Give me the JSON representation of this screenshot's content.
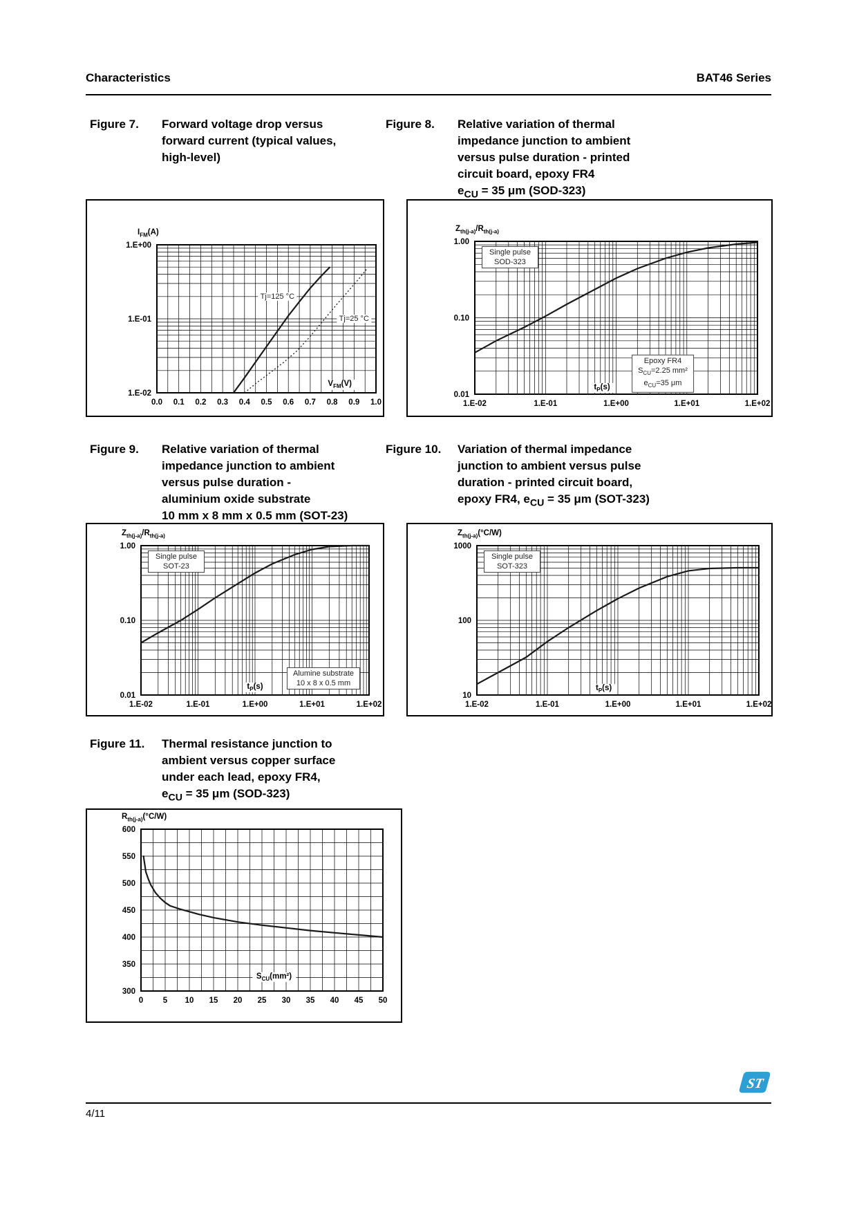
{
  "page": {
    "header_left": "Characteristics",
    "header_right": "BAT46 Series",
    "footer_page": "4/11",
    "logo_text": "ST",
    "colors": {
      "logo_blue": "#2E9FD4",
      "text": "#000000",
      "grid": "#000000"
    }
  },
  "figures": [
    {
      "label": "Figure 7.",
      "title_lines": [
        "Forward voltage drop versus",
        "forward current (typical values,",
        "high-level)"
      ],
      "chart_data": {
        "type": "line",
        "x_axis": {
          "label": "V_{FM}(V)",
          "scale": "linear",
          "min": 0,
          "max": 1,
          "minor_step": 0.05,
          "ticks": [
            {
              "label": "0.0",
              "v": 0
            },
            {
              "label": "0.1",
              "v": 0.1
            },
            {
              "label": "0.2",
              "v": 0.2
            },
            {
              "label": "0.3",
              "v": 0.3
            },
            {
              "label": "0.4",
              "v": 0.4
            },
            {
              "label": "0.5",
              "v": 0.5
            },
            {
              "label": "0.6",
              "v": 0.6
            },
            {
              "label": "0.7",
              "v": 0.7
            },
            {
              "label": "0.8",
              "v": 0.8
            },
            {
              "label": "0.9",
              "v": 0.9
            },
            {
              "label": "1.0",
              "v": 1
            }
          ]
        },
        "y_axis": {
          "label": "I_{FM}(A)",
          "scale": "log",
          "min": 0.01,
          "max": 1,
          "ticks": [
            {
              "label": "1.E+00",
              "v": 1
            },
            {
              "label": "1.E-01",
              "v": 0.1
            },
            {
              "label": "1.E-02",
              "v": 0.01
            }
          ]
        },
        "series": [
          {
            "name": "Tj=125 °C",
            "style": "solid",
            "points": [
              [
                0.35,
                0.01
              ],
              [
                0.4,
                0.016
              ],
              [
                0.45,
                0.026
              ],
              [
                0.5,
                0.042
              ],
              [
                0.55,
                0.068
              ],
              [
                0.6,
                0.11
              ],
              [
                0.65,
                0.17
              ],
              [
                0.7,
                0.26
              ],
              [
                0.75,
                0.38
              ],
              [
                0.79,
                0.5
              ]
            ]
          },
          {
            "name": "Tj=25 °C",
            "style": "dotted",
            "points": [
              [
                0.4,
                0.01
              ],
              [
                0.46,
                0.014
              ],
              [
                0.52,
                0.019
              ],
              [
                0.58,
                0.026
              ],
              [
                0.64,
                0.037
              ],
              [
                0.7,
                0.058
              ],
              [
                0.76,
                0.095
              ],
              [
                0.82,
                0.155
              ],
              [
                0.88,
                0.25
              ],
              [
                0.93,
                0.37
              ],
              [
                0.96,
                0.48
              ]
            ]
          }
        ],
        "annotations": [
          {
            "text": "Tj=125 °C",
            "x": 0.55,
            "y": 0.2
          },
          {
            "text": "Tj=25 °C",
            "x": 0.9,
            "y": 0.1
          }
        ],
        "xlabel_pos": {
          "x": 0.835,
          "y": 0.055
        }
      }
    },
    {
      "label": "Figure 8.",
      "title_lines": [
        "Relative variation of thermal",
        "impedance junction to ambient",
        "versus pulse duration - printed",
        "circuit board, epoxy FR4",
        "e_{CU} = 35 μm (SOD-323)"
      ],
      "chart_data": {
        "type": "line",
        "x_axis": {
          "label": "t_{P}(s)",
          "scale": "log",
          "min": 0.01,
          "max": 100,
          "ticks": [
            {
              "label": "1.E-02",
              "v": 0.01
            },
            {
              "label": "1.E-01",
              "v": 0.1
            },
            {
              "label": "1.E+00",
              "v": 1
            },
            {
              "label": "1.E+01",
              "v": 10
            },
            {
              "label": "1.E+02",
              "v": 100
            }
          ]
        },
        "y_axis": {
          "label": "Z_{th(j-a)}/R_{th(j-a)}",
          "scale": "log",
          "min": 0.01,
          "max": 1,
          "ticks": [
            {
              "label": "1.00",
              "v": 1
            },
            {
              "label": "0.10",
              "v": 0.1
            },
            {
              "label": "0.01",
              "v": 0.01
            }
          ]
        },
        "series": [
          {
            "name": "Zth(j-a)/Rth(j-a)",
            "style": "solid",
            "points": [
              [
                0.01,
                0.035
              ],
              [
                0.02,
                0.05
              ],
              [
                0.05,
                0.075
              ],
              [
                0.1,
                0.105
              ],
              [
                0.2,
                0.15
              ],
              [
                0.5,
                0.235
              ],
              [
                1,
                0.33
              ],
              [
                2,
                0.44
              ],
              [
                5,
                0.6
              ],
              [
                10,
                0.72
              ],
              [
                20,
                0.82
              ],
              [
                50,
                0.92
              ],
              [
                100,
                0.97
              ]
            ]
          }
        ],
        "legend": {
          "lines": [
            "Single pulse",
            "SOD-323"
          ]
        },
        "note": {
          "lines": [
            "Epoxy FR4",
            "S_{CU}=2.25 mm²",
            "e_{CU}=35 μm"
          ],
          "pos": {
            "x": 0.665,
            "y": 0.135
          }
        },
        "xlabel_pos": {
          "x": 0.45,
          "y": 0.04
        }
      }
    },
    {
      "label": "Figure 9.",
      "title_lines": [
        "Relative variation of thermal",
        "impedance junction to ambient",
        "versus pulse duration -",
        "aluminium oxide substrate",
        "10 mm x 8 mm x 0.5 mm (SOT-23)"
      ],
      "chart_data": {
        "type": "line",
        "x_axis": {
          "label": "t_{P}(s)",
          "scale": "log",
          "min": 0.01,
          "max": 100,
          "ticks": [
            {
              "label": "1.E-02",
              "v": 0.01
            },
            {
              "label": "1.E-01",
              "v": 0.1
            },
            {
              "label": "1.E+00",
              "v": 1
            },
            {
              "label": "1.E+01",
              "v": 10
            },
            {
              "label": "1.E+02",
              "v": 100
            }
          ]
        },
        "y_axis": {
          "label": "Z_{th(j-a)}/R_{th(j-a)}",
          "scale": "log",
          "min": 0.01,
          "max": 1,
          "ticks": [
            {
              "label": "1.00",
              "v": 1
            },
            {
              "label": "0.10",
              "v": 0.1
            },
            {
              "label": "0.01",
              "v": 0.01
            }
          ]
        },
        "series": [
          {
            "name": "Zth(j-a)/Rth(j-a)",
            "style": "solid",
            "points": [
              [
                0.01,
                0.05
              ],
              [
                0.02,
                0.068
              ],
              [
                0.05,
                0.1
              ],
              [
                0.1,
                0.14
              ],
              [
                0.2,
                0.2
              ],
              [
                0.5,
                0.31
              ],
              [
                1,
                0.43
              ],
              [
                2,
                0.57
              ],
              [
                5,
                0.76
              ],
              [
                10,
                0.89
              ],
              [
                20,
                0.97
              ],
              [
                50,
                1
              ],
              [
                100,
                1
              ]
            ]
          }
        ],
        "legend": {
          "lines": [
            "Single pulse",
            "SOT-23"
          ]
        },
        "note": {
          "lines": [
            "Alumine substrate",
            "10 x 8 x 0.5 mm"
          ],
          "pos": {
            "x": 0.8,
            "y": 0.11
          }
        },
        "xlabel_pos": {
          "x": 0.5,
          "y": 0.05
        }
      }
    },
    {
      "label": "Figure 10.",
      "title_lines": [
        "Variation of thermal impedance",
        "junction to ambient versus pulse",
        "duration - printed circuit board,",
        "epoxy FR4, e_{CU} = 35 μm (SOT-323)"
      ],
      "chart_data": {
        "type": "line",
        "x_axis": {
          "label": "t_{P}(s)",
          "scale": "log",
          "min": 0.01,
          "max": 100,
          "ticks": [
            {
              "label": "1.E-02",
              "v": 0.01
            },
            {
              "label": "1.E-01",
              "v": 0.1
            },
            {
              "label": "1.E+00",
              "v": 1
            },
            {
              "label": "1.E+01",
              "v": 10
            },
            {
              "label": "1.E+02",
              "v": 100
            }
          ]
        },
        "y_axis": {
          "label": "Z_{th(j-a)}(°C/W)",
          "scale": "log",
          "min": 10,
          "max": 1000,
          "ticks": [
            {
              "label": "1000",
              "v": 1000
            },
            {
              "label": "100",
              "v": 100
            },
            {
              "label": "10",
              "v": 10
            }
          ]
        },
        "series": [
          {
            "name": "Zth(j-a)",
            "style": "solid",
            "points": [
              [
                0.01,
                14
              ],
              [
                0.02,
                20
              ],
              [
                0.05,
                32
              ],
              [
                0.1,
                52
              ],
              [
                0.2,
                80
              ],
              [
                0.5,
                135
              ],
              [
                1,
                195
              ],
              [
                2,
                270
              ],
              [
                5,
                385
              ],
              [
                10,
                460
              ],
              [
                20,
                495
              ],
              [
                50,
                505
              ],
              [
                100,
                505
              ]
            ]
          }
        ],
        "legend": {
          "lines": [
            "Single pulse",
            "SOT-323"
          ]
        },
        "xlabel_pos": {
          "x": 0.45,
          "y": 0.04
        }
      }
    },
    {
      "label": "Figure 11.",
      "title_lines": [
        "Thermal resistance junction to",
        "ambient versus copper surface",
        "under each lead, epoxy FR4,",
        "e_{CU} = 35 μm (SOD-323)"
      ],
      "chart_data": {
        "type": "line",
        "x_axis": {
          "label": "S_{CU}(mm²)",
          "scale": "linear",
          "min": 0,
          "max": 50,
          "minor_step": 2.5,
          "ticks": [
            {
              "label": "0",
              "v": 0
            },
            {
              "label": "5",
              "v": 5
            },
            {
              "label": "10",
              "v": 10
            },
            {
              "label": "15",
              "v": 15
            },
            {
              "label": "20",
              "v": 20
            },
            {
              "label": "25",
              "v": 25
            },
            {
              "label": "30",
              "v": 30
            },
            {
              "label": "35",
              "v": 35
            },
            {
              "label": "40",
              "v": 40
            },
            {
              "label": "45",
              "v": 45
            },
            {
              "label": "50",
              "v": 50
            }
          ]
        },
        "y_axis": {
          "label": "R_{th(j-a)}(°C/W)",
          "scale": "linear",
          "min": 300,
          "max": 600,
          "minor_step": 25,
          "ticks": [
            {
              "label": "600",
              "v": 600
            },
            {
              "label": "550",
              "v": 550
            },
            {
              "label": "500",
              "v": 500
            },
            {
              "label": "450",
              "v": 450
            },
            {
              "label": "400",
              "v": 400
            },
            {
              "label": "350",
              "v": 350
            },
            {
              "label": "300",
              "v": 300
            }
          ]
        },
        "series": [
          {
            "name": "Rth(j-a)",
            "style": "solid",
            "points": [
              [
                0.5,
                551
              ],
              [
                1,
                521
              ],
              [
                1.5,
                508
              ],
              [
                2,
                497
              ],
              [
                3,
                482
              ],
              [
                4,
                472
              ],
              [
                5,
                464
              ],
              [
                6,
                458
              ],
              [
                8,
                452
              ],
              [
                10,
                447
              ],
              [
                12,
                442
              ],
              [
                15,
                436
              ],
              [
                20,
                428
              ],
              [
                25,
                422
              ],
              [
                30,
                417
              ],
              [
                35,
                412
              ],
              [
                40,
                408
              ],
              [
                45,
                404
              ],
              [
                50,
                400
              ]
            ]
          }
        ],
        "xlabel_pos": {
          "x": 0.55,
          "y": 0.085
        }
      }
    }
  ]
}
